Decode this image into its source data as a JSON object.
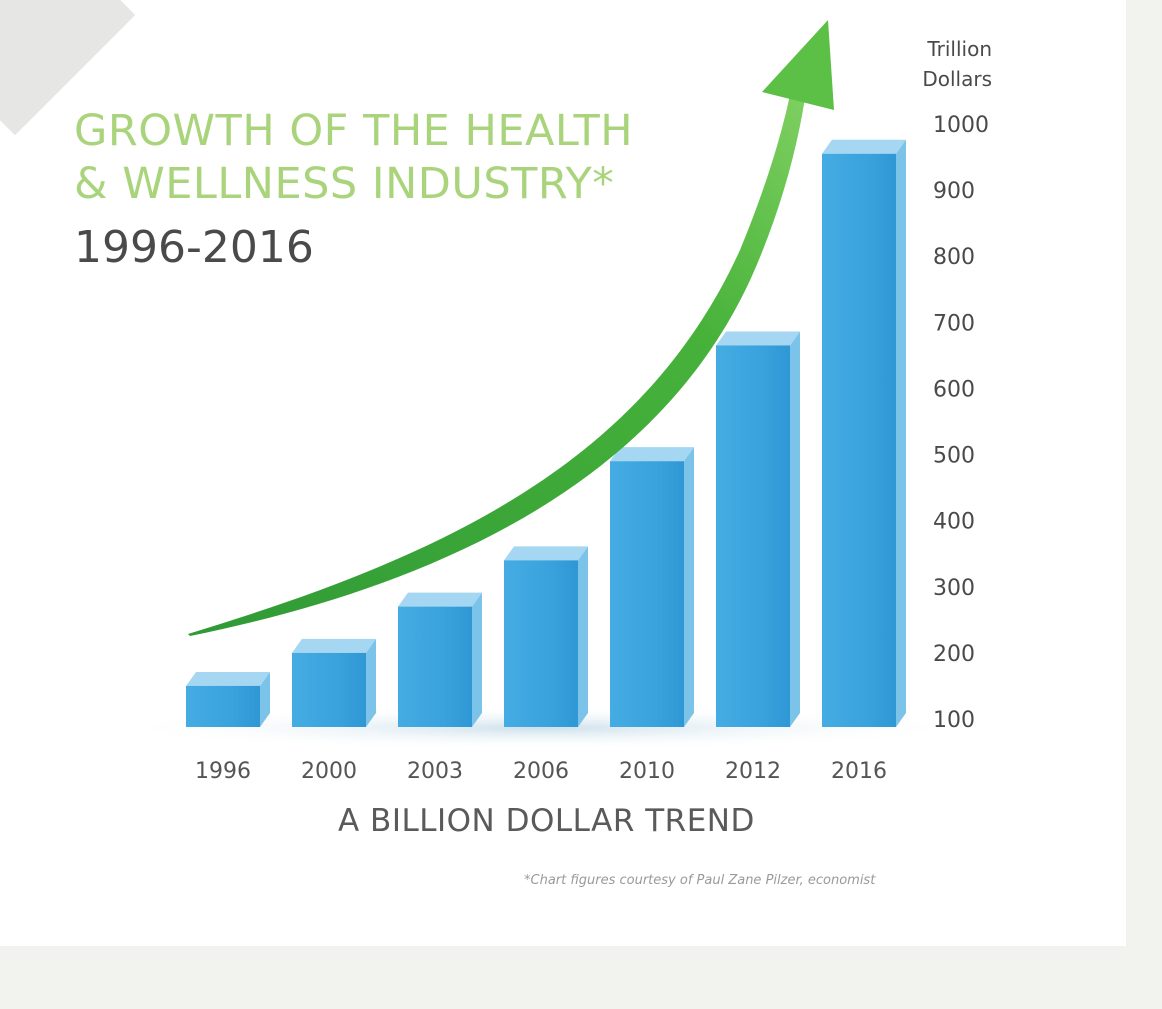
{
  "chart_data": {
    "type": "bar",
    "title_line1": "GROWTH OF THE HEALTH",
    "title_line2": "& WELLNESS INDUSTRY*",
    "subtitle": "1996-2016",
    "ylabel_line1": "Trillion",
    "ylabel_line2": "Dollars",
    "xlabel": "A  BILLION DOLLAR TREND",
    "footnote": "*Chart figures courtesy of Paul Zane Pilzer, economist",
    "categories": [
      "1996",
      "2000",
      "2003",
      "2006",
      "2010",
      "2012",
      "2016"
    ],
    "values": [
      150,
      200,
      270,
      340,
      490,
      665,
      955
    ],
    "ylim": [
      100,
      1000
    ],
    "yticks": [
      100,
      200,
      300,
      400,
      500,
      600,
      700,
      800,
      900,
      1000
    ],
    "y_axis_position": "right",
    "grid": false,
    "trend_arrow": true,
    "colors": {
      "bar": "#3aa2dc",
      "bar_top": "#a5d6f2",
      "title": "#a9d47c",
      "arrow": "#47b23a",
      "background": "#f2f2ee"
    }
  }
}
